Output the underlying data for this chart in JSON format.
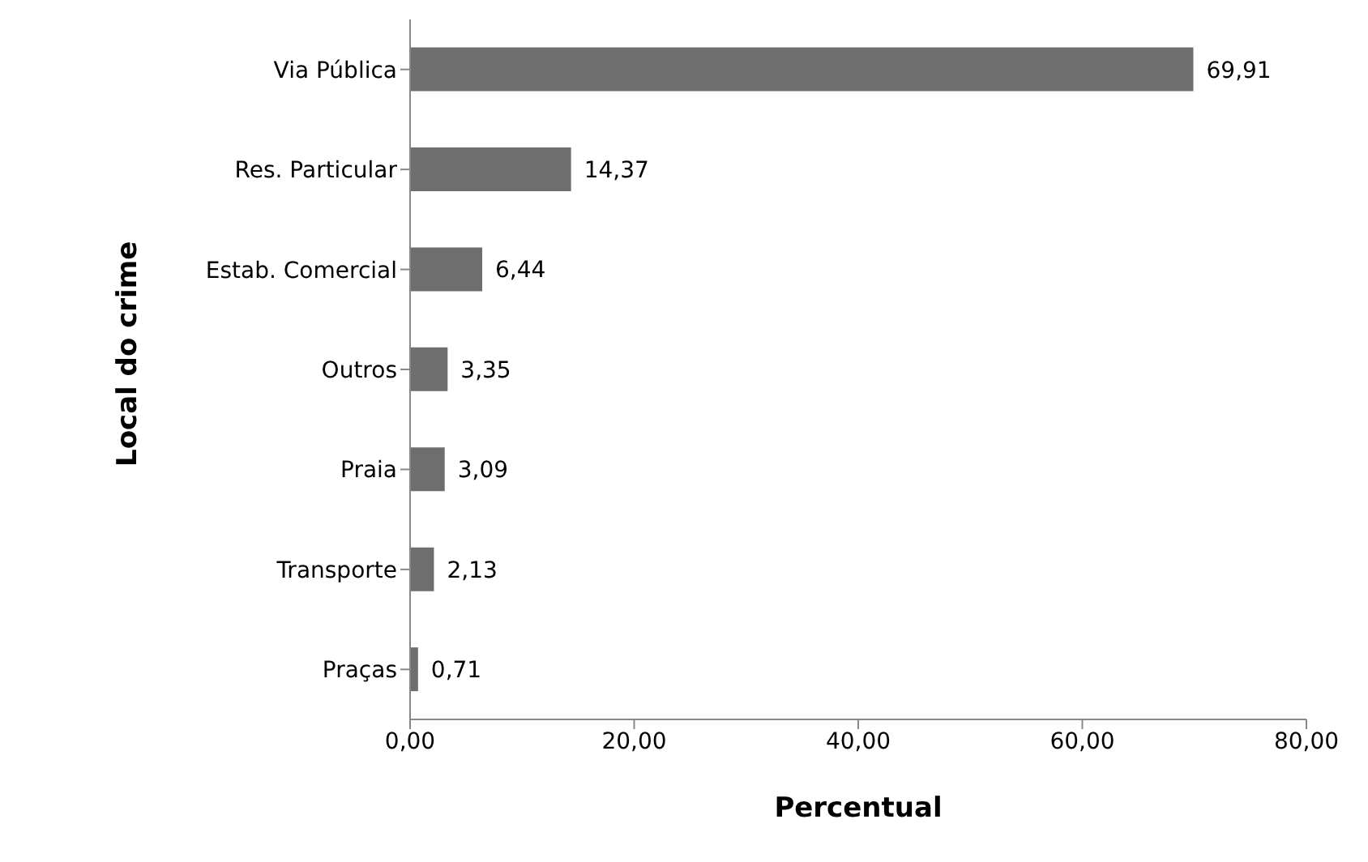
{
  "chart_data": {
    "type": "bar",
    "orientation": "horizontal",
    "xlabel": "Percentual",
    "ylabel": "Local do crime",
    "categories": [
      "Via Pública",
      "Res. Particular",
      "Estab. Comercial",
      "Outros",
      "Praia",
      "Transporte",
      "Praças"
    ],
    "values": [
      69.91,
      14.37,
      6.44,
      3.35,
      3.09,
      2.13,
      0.71
    ],
    "value_labels": [
      "69,91",
      "14,37",
      "6,44",
      "3,35",
      "3,09",
      "2,13",
      "0,71"
    ],
    "color": "#6e6e6e",
    "xlim": [
      0,
      80
    ],
    "xticks": [
      {
        "value": 0,
        "label": "0,00"
      },
      {
        "value": 20,
        "label": "20,00"
      },
      {
        "value": 40,
        "label": "40,00"
      },
      {
        "value": 60,
        "label": "60,00"
      },
      {
        "value": 80,
        "label": "80,00"
      }
    ],
    "grid": false,
    "legend": false
  }
}
